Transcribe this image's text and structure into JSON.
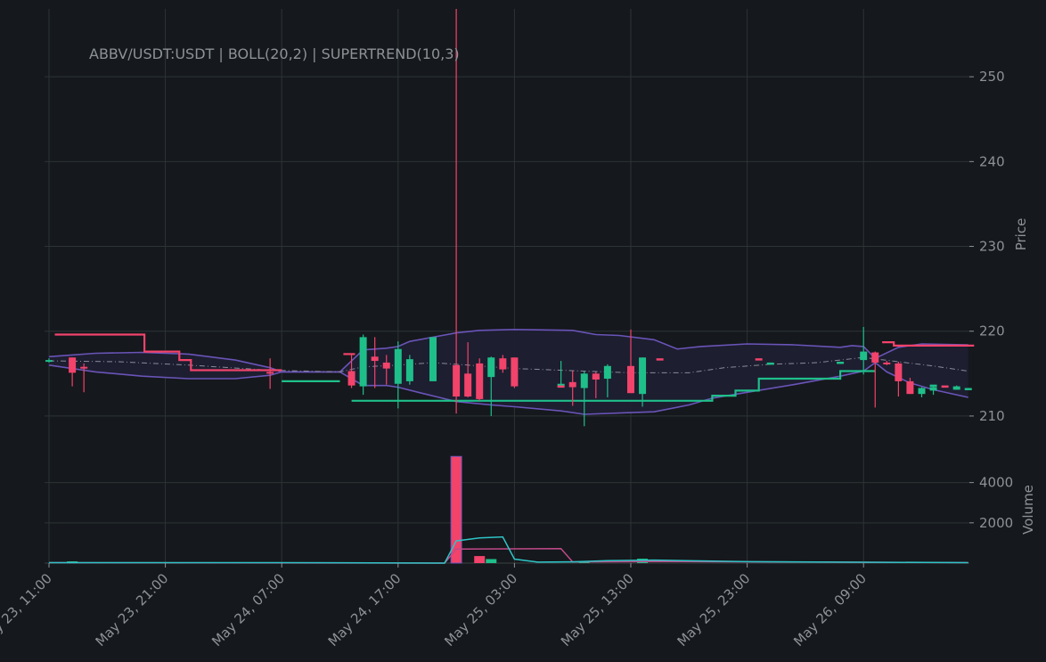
{
  "chart_data": {
    "type": "candlestick",
    "title": "ABBV/USDT:USDT | BOLL(20,2) | SUPERTREND(10,3)",
    "y_label": "Price",
    "volume_label": "Volume",
    "x_ticks": [
      "May 23, 11:00",
      "May 23, 21:00",
      "May 24, 07:00",
      "May 24, 17:00",
      "May 25, 03:00",
      "May 25, 13:00",
      "May 25, 23:00",
      "May 26, 09:00"
    ],
    "y_ticks": [
      210,
      220,
      230,
      240,
      250
    ],
    "volume_ticks": [
      2000,
      4000
    ],
    "x_range_hours": [
      0,
      79.5
    ],
    "y_range": [
      206,
      258
    ],
    "volume_range": [
      0,
      5400
    ],
    "grid": true,
    "colors": {
      "background": "#15181c",
      "up": "#1fbf8a",
      "down": "#f2436b",
      "band": "#6a54b8",
      "band_fill": "#1e1f33",
      "midline": "#8a8a9a",
      "volume_ma_short": "#2ec4c7",
      "volume_ma_long": "#c04a8a"
    },
    "candles": [
      {
        "t": 0,
        "o": 216.6,
        "h": 216.8,
        "l": 216.3,
        "c": 216.6
      },
      {
        "t": 2,
        "o": 216.9,
        "h": 216.9,
        "l": 213.5,
        "c": 215.1
      },
      {
        "t": 3,
        "o": 215.8,
        "h": 216.2,
        "l": 212.8,
        "c": 215.7
      },
      {
        "t": 19,
        "o": 215.2,
        "h": 216.8,
        "l": 213.2,
        "c": 215.0
      },
      {
        "t": 26,
        "o": 215.3,
        "h": 217.2,
        "l": 213.3,
        "c": 213.6
      },
      {
        "t": 27,
        "o": 213.5,
        "h": 219.6,
        "l": 212.5,
        "c": 219.3
      },
      {
        "t": 28,
        "o": 217.0,
        "h": 219.3,
        "l": 213.3,
        "c": 216.5
      },
      {
        "t": 29,
        "o": 216.3,
        "h": 217.2,
        "l": 213.7,
        "c": 215.6
      },
      {
        "t": 30,
        "o": 213.8,
        "h": 218.8,
        "l": 210.9,
        "c": 217.9
      },
      {
        "t": 31,
        "o": 214.1,
        "h": 217.2,
        "l": 213.7,
        "c": 216.7
      },
      {
        "t": 33,
        "o": 214.1,
        "h": 219.3,
        "l": 214.1,
        "c": 219.3
      },
      {
        "t": 35,
        "o": 216.0,
        "h": 258.0,
        "l": 210.3,
        "c": 212.3
      },
      {
        "t": 36,
        "o": 215.0,
        "h": 218.7,
        "l": 212.2,
        "c": 212.3
      },
      {
        "t": 37,
        "o": 216.2,
        "h": 216.8,
        "l": 211.8,
        "c": 212.0
      },
      {
        "t": 38,
        "o": 214.6,
        "h": 217.0,
        "l": 210.0,
        "c": 216.9
      },
      {
        "t": 39,
        "o": 216.8,
        "h": 217.2,
        "l": 215.1,
        "c": 215.5
      },
      {
        "t": 40,
        "o": 216.9,
        "h": 216.9,
        "l": 213.3,
        "c": 213.5
      },
      {
        "t": 44,
        "o": 213.5,
        "h": 216.5,
        "l": 213.4,
        "c": 213.8
      },
      {
        "t": 45,
        "o": 214.0,
        "h": 215.3,
        "l": 211.2,
        "c": 213.4
      },
      {
        "t": 46,
        "o": 213.3,
        "h": 215.3,
        "l": 208.8,
        "c": 215.0
      },
      {
        "t": 47,
        "o": 215.0,
        "h": 215.2,
        "l": 212.1,
        "c": 214.3
      },
      {
        "t": 48,
        "o": 214.4,
        "h": 216.1,
        "l": 212.2,
        "c": 215.9
      },
      {
        "t": 50,
        "o": 215.9,
        "h": 220.2,
        "l": 212.7,
        "c": 212.7
      },
      {
        "t": 51,
        "o": 212.6,
        "h": 216.9,
        "l": 211.1,
        "c": 216.9
      },
      {
        "t": 70,
        "o": 216.6,
        "h": 220.5,
        "l": 214.9,
        "c": 217.6
      },
      {
        "t": 71,
        "o": 217.5,
        "h": 217.6,
        "l": 211.0,
        "c": 216.3
      },
      {
        "t": 72,
        "o": 216.3,
        "h": 216.5,
        "l": 216.0,
        "c": 216.2
      },
      {
        "t": 73,
        "o": 216.2,
        "h": 216.4,
        "l": 212.3,
        "c": 214.1
      },
      {
        "t": 74,
        "o": 214.1,
        "h": 214.5,
        "l": 212.6,
        "c": 212.6
      },
      {
        "t": 75,
        "o": 212.6,
        "h": 213.4,
        "l": 212.2,
        "c": 213.3
      },
      {
        "t": 76,
        "o": 213.0,
        "h": 213.6,
        "l": 212.5,
        "c": 213.4
      },
      {
        "t": 78,
        "o": 213.1,
        "h": 213.6,
        "l": 213.1,
        "c": 213.5
      }
    ],
    "flat_markers": [
      {
        "t": 44,
        "v": 213.5,
        "color": "down"
      },
      {
        "t": 47,
        "v": 214.5,
        "color": "down"
      },
      {
        "t": 52.5,
        "v": 216.7,
        "color": "down"
      },
      {
        "t": 61,
        "v": 216.7,
        "color": "down"
      },
      {
        "t": 62,
        "v": 216.2,
        "color": "up"
      },
      {
        "t": 68,
        "v": 216.3,
        "color": "up"
      },
      {
        "t": 75,
        "v": 213.2,
        "color": "up"
      },
      {
        "t": 76,
        "v": 213.6,
        "color": "up"
      },
      {
        "t": 77,
        "v": 213.5,
        "color": "down"
      },
      {
        "t": 79,
        "v": 213.2,
        "color": "up"
      }
    ],
    "boll_upper": [
      [
        0,
        217.0
      ],
      [
        4,
        217.4
      ],
      [
        8,
        217.5
      ],
      [
        12,
        217.3
      ],
      [
        16,
        216.6
      ],
      [
        19,
        215.7
      ],
      [
        20,
        215.2
      ],
      [
        25,
        215.2
      ],
      [
        27,
        217.8
      ],
      [
        29,
        218.0
      ],
      [
        30,
        218.2
      ],
      [
        31,
        218.8
      ],
      [
        33,
        219.3
      ],
      [
        35,
        219.8
      ],
      [
        37,
        220.1
      ],
      [
        40,
        220.2
      ],
      [
        45,
        220.1
      ],
      [
        47,
        219.6
      ],
      [
        49,
        219.5
      ],
      [
        52,
        219.0
      ],
      [
        54,
        217.9
      ],
      [
        56,
        218.2
      ],
      [
        60,
        218.5
      ],
      [
        64,
        218.4
      ],
      [
        68,
        218.1
      ],
      [
        69,
        218.3
      ],
      [
        70,
        218.2
      ],
      [
        71,
        216.8
      ],
      [
        73,
        218.1
      ],
      [
        75,
        218.5
      ],
      [
        79,
        218.4
      ]
    ],
    "boll_lower": [
      [
        0,
        216.0
      ],
      [
        4,
        215.2
      ],
      [
        8,
        214.7
      ],
      [
        12,
        214.4
      ],
      [
        16,
        214.4
      ],
      [
        19,
        214.8
      ],
      [
        20,
        215.2
      ],
      [
        25,
        215.2
      ],
      [
        27,
        213.6
      ],
      [
        29,
        213.6
      ],
      [
        30,
        213.4
      ],
      [
        32,
        212.7
      ],
      [
        35,
        211.7
      ],
      [
        38,
        211.3
      ],
      [
        40,
        211.1
      ],
      [
        44,
        210.6
      ],
      [
        46,
        210.2
      ],
      [
        50,
        210.4
      ],
      [
        52,
        210.5
      ],
      [
        55,
        211.3
      ],
      [
        57,
        212.1
      ],
      [
        60,
        212.8
      ],
      [
        64,
        213.7
      ],
      [
        68,
        214.7
      ],
      [
        70,
        215.3
      ],
      [
        71,
        216.3
      ],
      [
        72,
        215.2
      ],
      [
        74,
        213.9
      ],
      [
        76,
        213.1
      ],
      [
        79,
        212.2
      ]
    ],
    "boll_mid": [
      [
        0,
        216.5
      ],
      [
        6,
        216.4
      ],
      [
        12,
        216.0
      ],
      [
        19,
        215.4
      ],
      [
        25,
        215.2
      ],
      [
        27,
        215.8
      ],
      [
        30,
        216.0
      ],
      [
        33,
        216.3
      ],
      [
        36,
        216.0
      ],
      [
        40,
        215.6
      ],
      [
        46,
        215.3
      ],
      [
        50,
        215.1
      ],
      [
        55,
        215.1
      ],
      [
        58,
        215.7
      ],
      [
        62,
        216.1
      ],
      [
        66,
        216.3
      ],
      [
        70,
        216.9
      ],
      [
        73,
        216.4
      ],
      [
        76,
        215.9
      ],
      [
        79,
        215.3
      ]
    ],
    "supertrend_down": [
      [
        [
          0.5,
          219.6
        ],
        [
          8.2,
          219.6
        ],
        [
          8.2,
          217.6
        ],
        [
          11.2,
          217.6
        ],
        [
          11.2,
          216.6
        ],
        [
          12.2,
          216.6
        ],
        [
          12.2,
          215.4
        ],
        [
          20.0,
          215.4
        ]
      ],
      [
        [
          25.3,
          217.3
        ],
        [
          26.3,
          217.3
        ]
      ],
      [
        [
          71.6,
          218.7
        ],
        [
          72.6,
          218.7
        ],
        [
          72.6,
          218.3
        ],
        [
          79.5,
          218.3
        ]
      ]
    ],
    "supertrend_up": [
      [
        [
          20.0,
          214.1
        ],
        [
          25.0,
          214.1
        ]
      ],
      [
        [
          26.0,
          211.8
        ],
        [
          57.0,
          211.8
        ],
        [
          57.0,
          212.4
        ],
        [
          59.0,
          212.4
        ],
        [
          59.0,
          213.0
        ],
        [
          61.0,
          213.0
        ],
        [
          61.0,
          214.4
        ],
        [
          68.0,
          214.4
        ],
        [
          68.0,
          215.3
        ],
        [
          71.0,
          215.3
        ]
      ]
    ],
    "volume_bars": [
      {
        "t": 2,
        "v": 30,
        "color": "up"
      },
      {
        "t": 35,
        "v": 5300,
        "color": "down"
      },
      {
        "t": 37,
        "v": 350,
        "color": "down"
      },
      {
        "t": 38,
        "v": 200,
        "color": "up"
      },
      {
        "t": 46,
        "v": 60,
        "color": "up"
      },
      {
        "t": 51,
        "v": 220,
        "color": "up"
      }
    ],
    "volume_ma_short": [
      [
        0,
        20
      ],
      [
        20,
        20
      ],
      [
        34,
        0
      ],
      [
        35,
        1100
      ],
      [
        37,
        1250
      ],
      [
        39,
        1300
      ],
      [
        40,
        200
      ],
      [
        42,
        50
      ],
      [
        45,
        60
      ],
      [
        48,
        120
      ],
      [
        52,
        150
      ],
      [
        60,
        70
      ],
      [
        79,
        20
      ]
    ],
    "volume_ma_long": [
      [
        0,
        20
      ],
      [
        34,
        0
      ],
      [
        35,
        700
      ],
      [
        44,
        720
      ],
      [
        45,
        60
      ],
      [
        52,
        80
      ],
      [
        79,
        20
      ]
    ]
  }
}
